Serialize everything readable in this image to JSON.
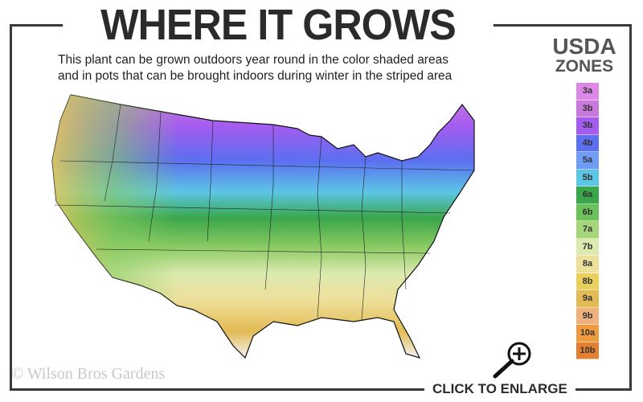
{
  "title": "WHERE IT GROWS",
  "subtitle": [
    "This plant can be grown outdoors year round in the color shaded areas",
    "and in pots that can be brought indoors during winter in the striped area"
  ],
  "legend": {
    "title_line1": "USDA",
    "title_line2": "ZONES",
    "zones": [
      {
        "label": "3a",
        "color": "#dd88e6"
      },
      {
        "label": "3b",
        "color": "#c978de"
      },
      {
        "label": "3b",
        "color": "#a45cf0"
      },
      {
        "label": "4b",
        "color": "#5b6ff0"
      },
      {
        "label": "5a",
        "color": "#6f9cf7"
      },
      {
        "label": "5b",
        "color": "#5cc6e6"
      },
      {
        "label": "6a",
        "color": "#3aa64a"
      },
      {
        "label": "6b",
        "color": "#6bc25a"
      },
      {
        "label": "7a",
        "color": "#a6d57a"
      },
      {
        "label": "7b",
        "color": "#dceab0"
      },
      {
        "label": "8a",
        "color": "#ede09a"
      },
      {
        "label": "8b",
        "color": "#e9cf5c"
      },
      {
        "label": "9a",
        "color": "#e3bb55"
      },
      {
        "label": "9b",
        "color": "#f0b27c"
      },
      {
        "label": "10a",
        "color": "#ee9a3e"
      },
      {
        "label": "10b",
        "color": "#e27f30"
      }
    ]
  },
  "copyright": "© Wilson Bros Gardens",
  "enlarge_label": "CLICK TO ENLARGE",
  "icons": {
    "enlarge": "magnifier-plus-icon"
  }
}
